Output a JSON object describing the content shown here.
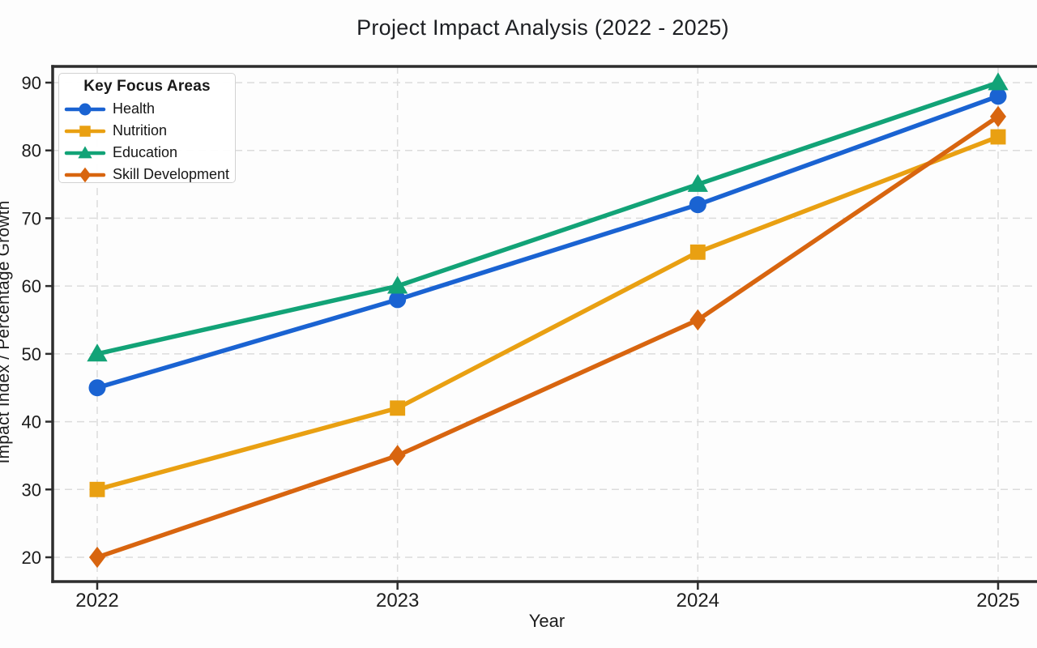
{
  "chart_data": {
    "type": "line",
    "title": "Project Impact Analysis (2022 - 2025)",
    "xlabel": "Year",
    "ylabel": "Impact Index / Percentage Growth",
    "categories": [
      "2022",
      "2023",
      "2024",
      "2025"
    ],
    "yticks": [
      20,
      30,
      40,
      50,
      60,
      70,
      80,
      90
    ],
    "ylim": [
      16.5,
      92.5
    ],
    "grid": "dashed-both-axes",
    "grid_color": "#dcdcdc",
    "axis_color": "#2d2d2d",
    "legend": {
      "title": "Key Focus Areas",
      "position": "upper-left"
    },
    "series": [
      {
        "name": "Health",
        "color": "#1a63d2",
        "marker": "circle",
        "values": [
          45,
          58,
          72,
          88
        ]
      },
      {
        "name": "Nutrition",
        "color": "#e9a012",
        "marker": "square",
        "values": [
          30,
          42,
          65,
          82
        ]
      },
      {
        "name": "Education",
        "color": "#12a377",
        "marker": "triangle",
        "values": [
          50,
          60,
          75,
          90
        ]
      },
      {
        "name": "Skill Development",
        "color": "#d8650f",
        "marker": "diamond",
        "values": [
          20,
          35,
          55,
          85
        ]
      }
    ]
  }
}
